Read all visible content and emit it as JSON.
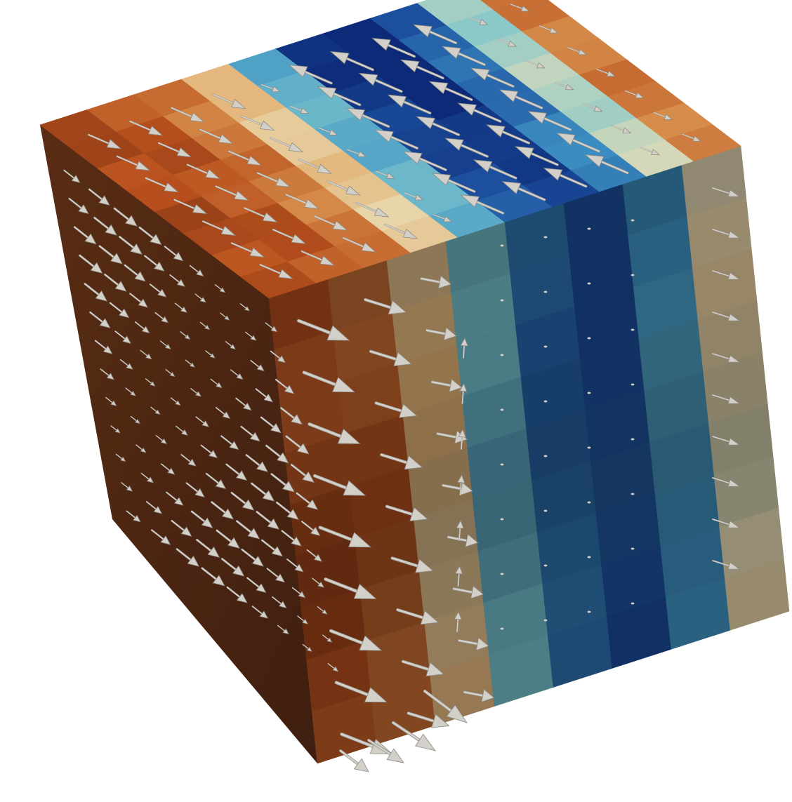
{
  "scene": {
    "object": "cube",
    "faces": [
      "top",
      "left",
      "right"
    ],
    "glyph": "arrow",
    "colors": {
      "background": "#ffffff",
      "glyph": "#d3d0c9",
      "glyph_shadow": "#8d8a84",
      "left_face": "#4c2612",
      "color_map": [
        "#5e2410",
        "#b8501d",
        "#e0a05a",
        "#e8dcb4",
        "#7fc7cc",
        "#3f94c4",
        "#1d52a0",
        "#0d2a78"
      ]
    }
  }
}
